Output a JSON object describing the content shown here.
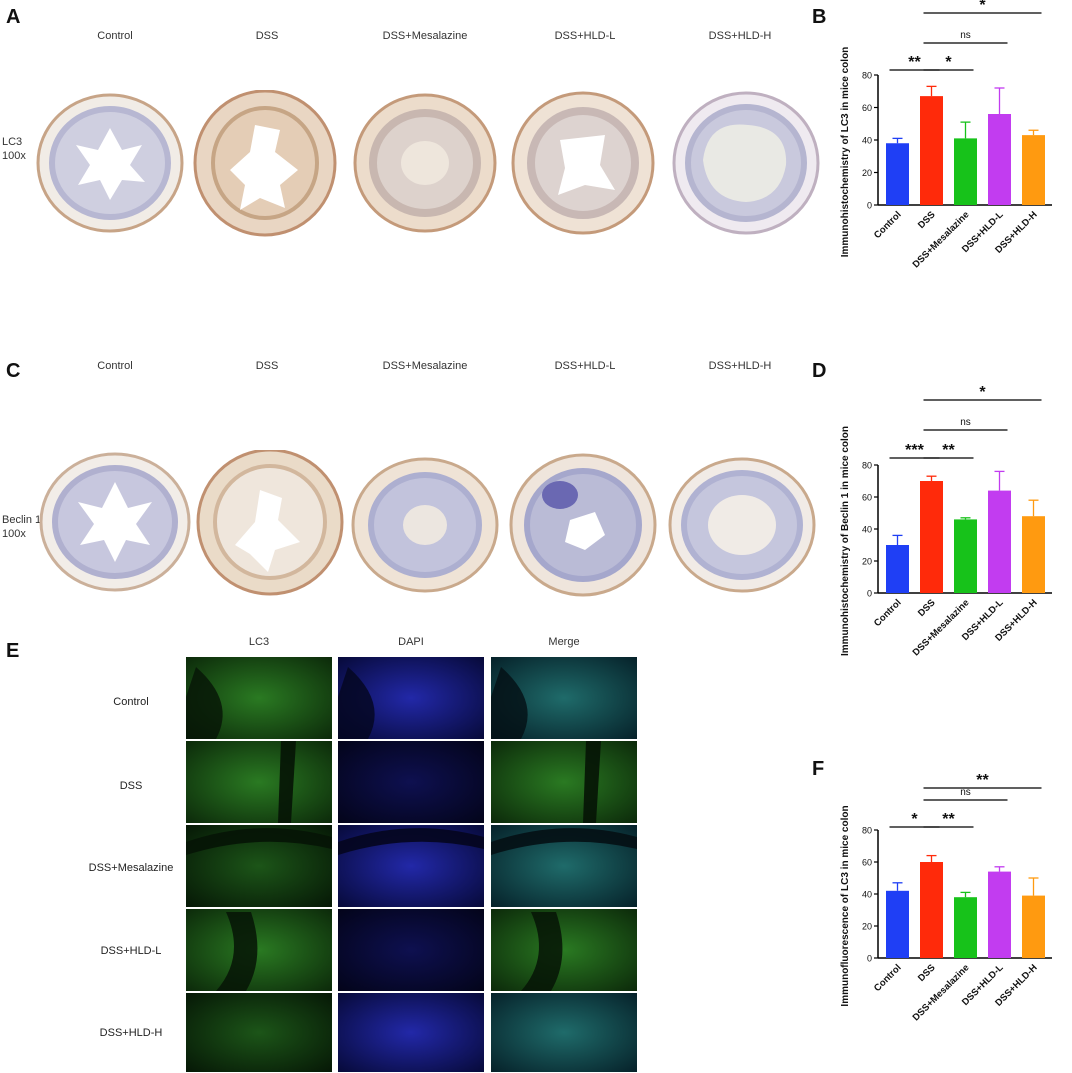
{
  "panels": {
    "A": {
      "letter": "A",
      "columns": [
        "Control",
        "DSS",
        "DSS+Mesalazine",
        "DSS+HLD-L",
        "DSS+HLD-H"
      ],
      "row_label_line1": "LC3",
      "row_label_line2": "100x"
    },
    "C": {
      "letter": "C",
      "columns": [
        "Control",
        "DSS",
        "DSS+Mesalazine",
        "DSS+HLD-L",
        "DSS+HLD-H"
      ],
      "row_label_line1": "Beclin 1",
      "row_label_line2": "100x"
    },
    "E": {
      "letter": "E",
      "columns": [
        "LC3",
        "DAPI",
        "Merge"
      ],
      "rows": [
        "Control",
        "DSS",
        "DSS+Mesalazine",
        "DSS+HLD-L",
        "DSS+HLD-H"
      ]
    },
    "B": {
      "letter": "B"
    },
    "D": {
      "letter": "D"
    },
    "F": {
      "letter": "F"
    }
  },
  "colors": {
    "Control": "#1f3ff5",
    "DSS": "#ff2a0a",
    "DSS+Mesalazine": "#17c21a",
    "DSS+HLD-L": "#c23cf0",
    "DSS+HLD-H": "#ff9a10",
    "tissue_fill": "#f1ece6",
    "tissue_edge": "#c7a487",
    "mucosa": "#b7b7d2",
    "if_green": "#1b5e17",
    "if_blue": "#151a8a"
  },
  "chart_data": [
    {
      "type": "bar",
      "panel": "B",
      "categories": [
        "Control",
        "DSS",
        "DSS+Mesalazine",
        "DSS+HLD-L",
        "DSS+HLD-H"
      ],
      "values": [
        38,
        67,
        41,
        56,
        43
      ],
      "errors": [
        3,
        6,
        10,
        16,
        3
      ],
      "ylabel": "Immunohistochemistry of LC3 in mice colon",
      "ylim": [
        0,
        80
      ],
      "yticks": [
        0,
        20,
        40,
        60,
        80
      ],
      "significance": [
        {
          "from": 0,
          "to": 1,
          "label": "**",
          "level": 0
        },
        {
          "from": 1,
          "to": 2,
          "label": "*",
          "level": 0
        },
        {
          "from": 1,
          "to": 3,
          "label": "ns",
          "level": 1
        },
        {
          "from": 1,
          "to": 4,
          "label": "*",
          "level": 2
        }
      ]
    },
    {
      "type": "bar",
      "panel": "D",
      "categories": [
        "Control",
        "DSS",
        "DSS+Mesalazine",
        "DSS+HLD-L",
        "DSS+HLD-H"
      ],
      "values": [
        30,
        70,
        46,
        64,
        48
      ],
      "errors": [
        6,
        3,
        1,
        12,
        10
      ],
      "ylabel": "Immunohistochemistry of Beclin 1 in mice colon",
      "ylim": [
        0,
        80
      ],
      "yticks": [
        0,
        20,
        40,
        60,
        80
      ],
      "significance": [
        {
          "from": 0,
          "to": 1,
          "label": "***",
          "level": 0
        },
        {
          "from": 1,
          "to": 2,
          "label": "**",
          "level": 0
        },
        {
          "from": 1,
          "to": 3,
          "label": "ns",
          "level": 1
        },
        {
          "from": 1,
          "to": 4,
          "label": "*",
          "level": 2
        }
      ]
    },
    {
      "type": "bar",
      "panel": "F",
      "categories": [
        "Control",
        "DSS",
        "DSS+Mesalazine",
        "DSS+HLD-L",
        "DSS+HLD-H"
      ],
      "values": [
        42,
        60,
        38,
        54,
        39
      ],
      "errors": [
        5,
        4,
        3,
        3,
        11
      ],
      "ylabel": "Immunofluorescence of LC3 in mice colon",
      "ylim": [
        0,
        80
      ],
      "yticks": [
        0,
        20,
        40,
        60,
        80
      ],
      "significance": [
        {
          "from": 0,
          "to": 1,
          "label": "*",
          "level": 0
        },
        {
          "from": 1,
          "to": 2,
          "label": "**",
          "level": 0
        },
        {
          "from": 1,
          "to": 3,
          "label": "ns",
          "level": 1
        },
        {
          "from": 1,
          "to": 4,
          "label": "**",
          "level": 2
        }
      ]
    }
  ]
}
